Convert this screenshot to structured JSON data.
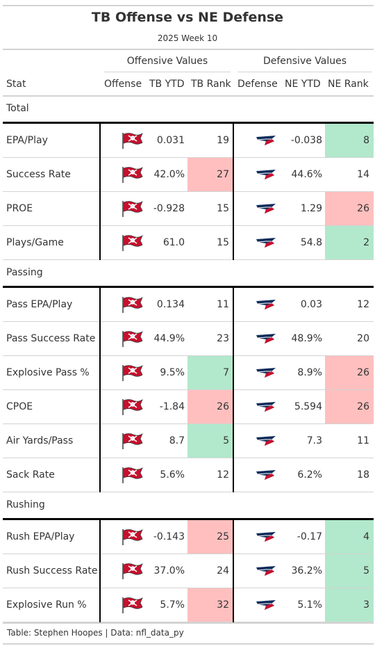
{
  "title": "TB Offense vs NE Defense",
  "subtitle": "2025 Week 10",
  "spanners": {
    "offense": "Offensive Values",
    "defense": "Defensive Values"
  },
  "columns": {
    "stat": "Stat",
    "offense": "Offense",
    "tb_ytd": "TB YTD",
    "tb_rank": "TB Rank",
    "defense": "Defense",
    "ne_ytd": "NE YTD",
    "ne_rank": "NE Rank"
  },
  "colors": {
    "good": "#b2e8cc",
    "bad": "#ffbfbf",
    "tb_red": "#c8102e",
    "tb_pewter": "#6d6d6d",
    "ne_navy": "#0b2b5a",
    "ne_red": "#c8102e"
  },
  "icons": {
    "offense": "buccaneers-flag-logo-icon",
    "defense": "patriots-logo-icon"
  },
  "groups": [
    {
      "label": "Total",
      "rows": [
        {
          "stat": "EPA/Play",
          "tb_ytd": "0.031",
          "tb_rank": "19",
          "tb_hl": "",
          "ne_ytd": "-0.038",
          "ne_rank": "8",
          "ne_hl": "good"
        },
        {
          "stat": "Success Rate",
          "tb_ytd": "42.0%",
          "tb_rank": "27",
          "tb_hl": "bad",
          "ne_ytd": "44.6%",
          "ne_rank": "14",
          "ne_hl": ""
        },
        {
          "stat": "PROE",
          "tb_ytd": "-0.928",
          "tb_rank": "15",
          "tb_hl": "",
          "ne_ytd": "1.29",
          "ne_rank": "26",
          "ne_hl": "bad"
        },
        {
          "stat": "Plays/Game",
          "tb_ytd": "61.0",
          "tb_rank": "15",
          "tb_hl": "",
          "ne_ytd": "54.8",
          "ne_rank": "2",
          "ne_hl": "good"
        }
      ]
    },
    {
      "label": "Passing",
      "rows": [
        {
          "stat": "Pass EPA/Play",
          "tb_ytd": "0.134",
          "tb_rank": "11",
          "tb_hl": "",
          "ne_ytd": "0.03",
          "ne_rank": "12",
          "ne_hl": ""
        },
        {
          "stat": "Pass Success Rate",
          "tb_ytd": "44.9%",
          "tb_rank": "23",
          "tb_hl": "",
          "ne_ytd": "48.9%",
          "ne_rank": "20",
          "ne_hl": ""
        },
        {
          "stat": "Explosive Pass %",
          "tb_ytd": "9.5%",
          "tb_rank": "7",
          "tb_hl": "good",
          "ne_ytd": "8.9%",
          "ne_rank": "26",
          "ne_hl": "bad"
        },
        {
          "stat": "CPOE",
          "tb_ytd": "-1.84",
          "tb_rank": "26",
          "tb_hl": "bad",
          "ne_ytd": "5.594",
          "ne_rank": "26",
          "ne_hl": "bad"
        },
        {
          "stat": "Air Yards/Pass",
          "tb_ytd": "8.7",
          "tb_rank": "5",
          "tb_hl": "good",
          "ne_ytd": "7.3",
          "ne_rank": "11",
          "ne_hl": ""
        },
        {
          "stat": "Sack Rate",
          "tb_ytd": "5.6%",
          "tb_rank": "12",
          "tb_hl": "",
          "ne_ytd": "6.2%",
          "ne_rank": "18",
          "ne_hl": ""
        }
      ]
    },
    {
      "label": "Rushing",
      "rows": [
        {
          "stat": "Rush EPA/Play",
          "tb_ytd": "-0.143",
          "tb_rank": "25",
          "tb_hl": "bad",
          "ne_ytd": "-0.17",
          "ne_rank": "4",
          "ne_hl": "good"
        },
        {
          "stat": "Rush Success Rate",
          "tb_ytd": "37.0%",
          "tb_rank": "24",
          "tb_hl": "",
          "ne_ytd": "36.2%",
          "ne_rank": "5",
          "ne_hl": "good"
        },
        {
          "stat": "Explosive Run %",
          "tb_ytd": "5.7%",
          "tb_rank": "32",
          "tb_hl": "bad",
          "ne_ytd": "5.1%",
          "ne_rank": "3",
          "ne_hl": "good"
        }
      ]
    }
  ],
  "footer": "Table: Stephen Hoopes | Data: nfl_data_py"
}
